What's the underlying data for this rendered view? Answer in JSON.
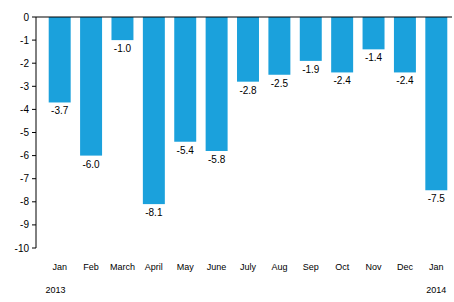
{
  "chart_data": {
    "type": "bar",
    "categories": [
      "Jan",
      "Feb",
      "March",
      "April",
      "May",
      "June",
      "July",
      "Aug",
      "Sep",
      "Oct",
      "Nov",
      "Dec",
      "Jan"
    ],
    "years": [
      "2013",
      null,
      null,
      null,
      null,
      null,
      null,
      null,
      null,
      null,
      null,
      null,
      "2014"
    ],
    "values": [
      -3.7,
      -6.0,
      -1.0,
      -8.1,
      -5.4,
      -5.8,
      -2.8,
      -2.5,
      -1.9,
      -2.4,
      -1.4,
      -2.4,
      -7.5
    ],
    "value_labels": [
      "-3.7",
      "-6.0",
      "-1.0",
      "-8.1",
      "-5.4",
      "-5.8",
      "-2.8",
      "-2.5",
      "-1.9",
      "-2.4",
      "-1.4",
      "-2.4",
      "-7.5"
    ],
    "color": "#1ba1dc",
    "ylim": [
      -10,
      0
    ],
    "yticks": [
      0,
      -1,
      -2,
      -3,
      -4,
      -5,
      -6,
      -7,
      -8,
      -9,
      -10
    ],
    "grid": false,
    "data_labels": true
  }
}
